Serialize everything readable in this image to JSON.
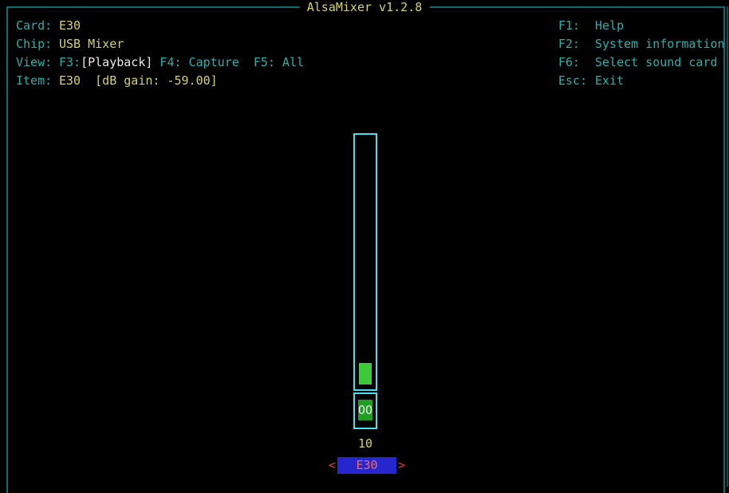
{
  "app": {
    "title": "AlsaMixer v1.2.8"
  },
  "info": {
    "card": {
      "label": "Card:",
      "value": "E30"
    },
    "chip": {
      "label": "Chip:",
      "value": "USB Mixer"
    },
    "view": {
      "label": "View:",
      "f3_key": "F3:",
      "active_view": "[Playback]",
      "other_views": " F4: Capture  F5: All"
    },
    "item": {
      "label": "Item:",
      "value": "E30  [dB gain: -59.00]"
    }
  },
  "menu": [
    {
      "key": "F1:",
      "label": "Help"
    },
    {
      "key": "F2:",
      "label": "System information"
    },
    {
      "key": "F6:",
      "label": "Select sound card"
    },
    {
      "key": "Esc:",
      "label": "Exit"
    }
  ],
  "mixer": {
    "control_name": "E30",
    "volume_percent": "10",
    "mute_indicator": "OO",
    "left_arrow": "<",
    "right_arrow": ">"
  },
  "colors": {
    "background": "#000000",
    "frame_border": "#0d6c70",
    "cyan_text": "#26b0ac",
    "yellow_text": "#d6d35e",
    "white_text": "#e9e9e9",
    "bar_border": "#44e0f2",
    "bar_fill_green": "#3cc93c",
    "mute_green": "#1f9e1f",
    "highlight_blue": "#2626cf",
    "arrow_red": "#e13a3a",
    "selected_red": "#ef6a6a"
  }
}
